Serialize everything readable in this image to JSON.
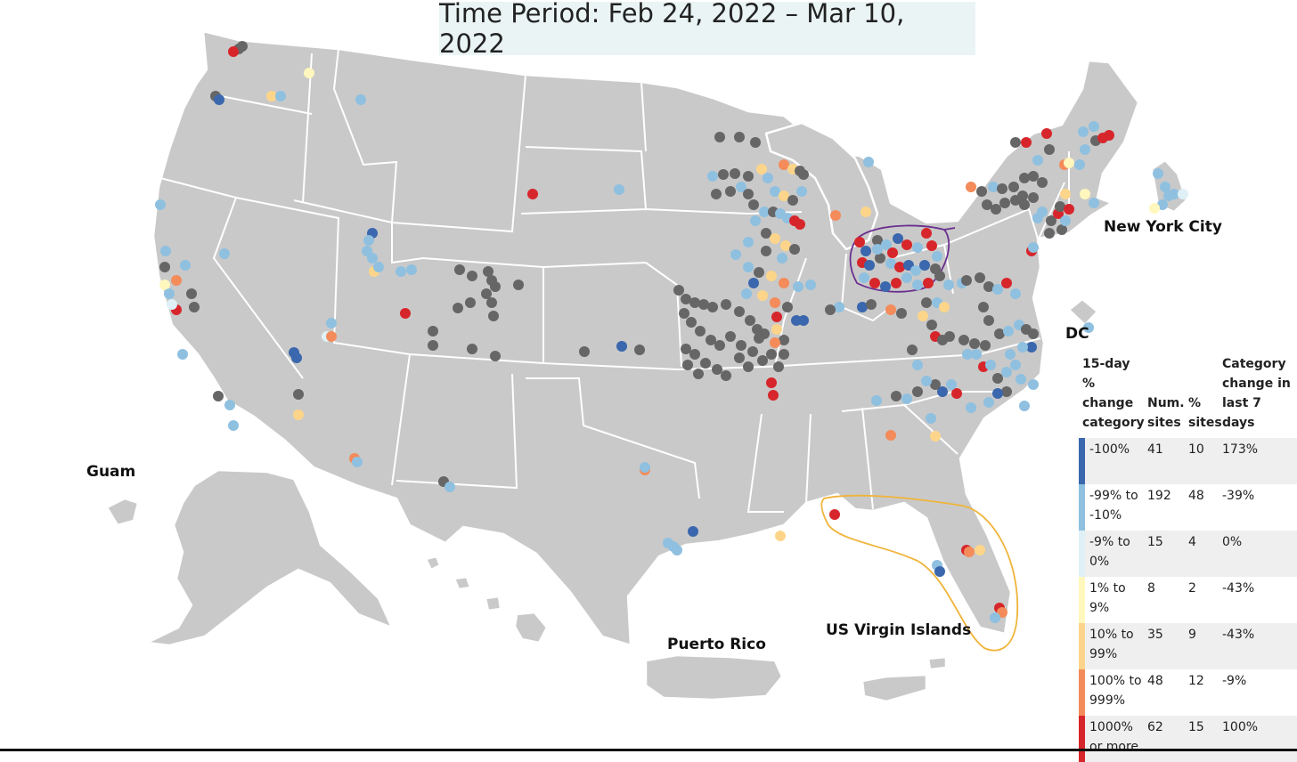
{
  "title": "Time Period: Feb 24, 2022 – Mar 10, 2022",
  "labels": {
    "new_york_city": "New York City",
    "dc": "DC",
    "guam": "Guam",
    "puerto_rico": "Puerto Rico",
    "us_virgin_islands": "US Virgin Islands"
  },
  "legend": {
    "header": {
      "category": "15-day % change category",
      "num_sites": "Num. sites",
      "pct_sites": "% sites",
      "change": "Category change in last 7 days"
    },
    "rows": [
      {
        "category": "-100%",
        "num_sites": "41",
        "pct_sites": "10",
        "change": "173%",
        "color": "#3a67ad"
      },
      {
        "category": "-99% to -10%",
        "num_sites": "192",
        "pct_sites": "48",
        "change": "-39%",
        "color": "#8fc0e0"
      },
      {
        "category": "-9% to 0%",
        "num_sites": "15",
        "pct_sites": "4",
        "change": "0%",
        "color": "#dff0f7"
      },
      {
        "category": "1% to 9%",
        "num_sites": "8",
        "pct_sites": "2",
        "change": "-43%",
        "color": "#fff7bd"
      },
      {
        "category": "10% to 99%",
        "num_sites": "35",
        "pct_sites": "9",
        "change": "-43%",
        "color": "#fdd58a"
      },
      {
        "category": "100% to 999%",
        "num_sites": "48",
        "pct_sites": "12",
        "change": "-9%",
        "color": "#f48b5a"
      },
      {
        "category": "1000% or more",
        "num_sites": "62",
        "pct_sites": "15",
        "change": "100%",
        "color": "#d7262b"
      }
    ]
  },
  "colors": {
    "no_data": "#666666",
    "land": "#c9c9c9",
    "borders": "#ffffff",
    "highlight_ohio": "#6b2f8f",
    "highlight_florida": "#f0b43a"
  }
}
